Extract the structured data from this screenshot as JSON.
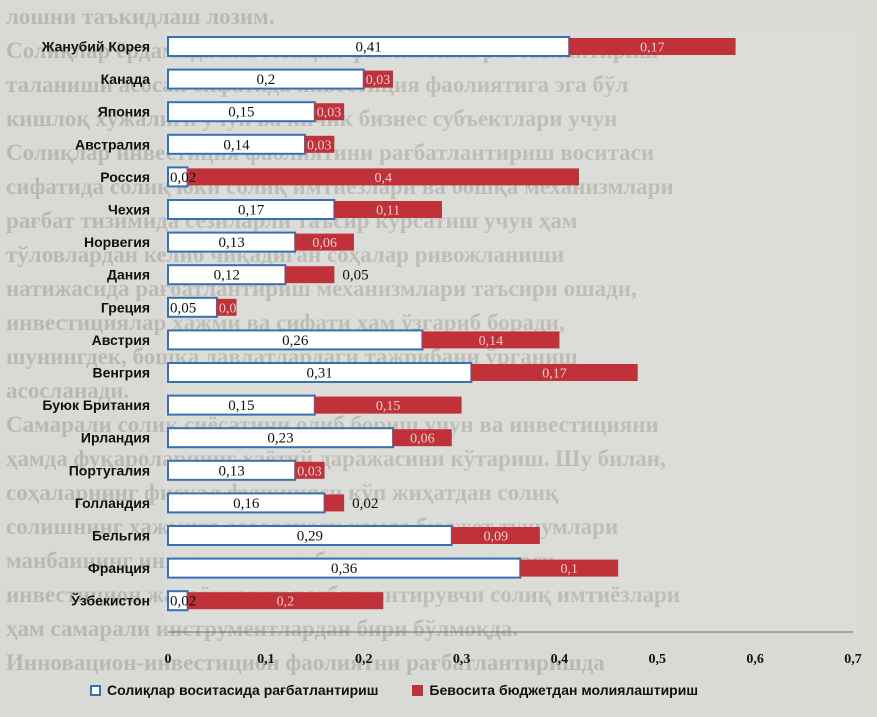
{
  "colors": {
    "series_a_fill": "#ffffff",
    "series_a_stroke": "#3a6fb0",
    "series_b_fill": "#c0313a",
    "background": "#d9d9d6"
  },
  "background_text": [
    "лошни таъкидлаш лозим.",
    "Солиқлар ёрдамида инвестиция фаолиятини рағбатлантириш",
    "таланиши асосан сифатида инвестиция фаолиятига эга бўл",
    "кишлоқ хўжалиги учун ва кичик бизнес субъектлари учун",
    "Солиқлар инвестиция фаолиятини рағбатлантириш воситаси",
    "сифатида солиқ юки солиқ имтиёзлари ва бошқа механизмлари",
    "рағбат тизимида сезиларли таъсир кўрсатиш учун ҳам",
    "тўловлардан келиб чиқадиган соҳалар ривожланиши",
    "натижасида рағбатлантириш механизмлари таъсири ошади,",
    "инвестициялар ҳажми ва сифати ҳам ўзгариб боради,",
    "шунингдек, бошқа давлатлардаги тажрибани ўрганиш",
    "асосланади.",
    "Самарали солиқ сиёсатини олиб бориш учун ва инвестицияни",
    "ҳамда фуқароларнинг ҳаётий даражасини кўтариш. Шу билан,",
    "соҳаларнинг фискал функцияси кўп жиҳатдан солиқ",
    "солишнинг ҳажмига асосланади ҳамда бюджет тушумлари",
    "манбаининг инвестицион рағбатлантириш воситаси",
    "инвестицион жараёнларни рағбатлантирувчи солиқ имтиёзлари",
    "ҳам самарали инструментлардан бири бўлмоқда.",
    "Инновацион-инвестицион фаолиятни рағбатлантиришда"
  ],
  "legend": {
    "series_a": "Солиқлар воситасида рағбатлантириш",
    "series_b": "Бевосита бюджетдан молиялаштириш"
  },
  "chart_data": {
    "type": "bar",
    "orientation": "horizontal",
    "stacked": true,
    "categories": [
      "Жанубий Корея",
      "Канада",
      "Япония",
      "Австралия",
      "Россия",
      "Чехия",
      "Норвегия",
      "Дания",
      "Греция",
      "Австрия",
      "Венгрия",
      "Буюк Британия",
      "Ирландия",
      "Португалия",
      "Голландия",
      "Бельгия",
      "Франция",
      "Ўзбекистон"
    ],
    "series": [
      {
        "name": "Солиқлар воситасида рағбатлантириш",
        "values": [
          0.41,
          0.2,
          0.15,
          0.14,
          0.02,
          0.17,
          0.13,
          0.12,
          0.05,
          0.26,
          0.31,
          0.15,
          0.23,
          0.13,
          0.16,
          0.29,
          0.36,
          0.02
        ]
      },
      {
        "name": "Бевосита бюджетдан молиялаштириш",
        "values": [
          0.17,
          0.03,
          0.03,
          0.03,
          0.4,
          0.11,
          0.06,
          0.05,
          0.02,
          0.14,
          0.17,
          0.15,
          0.06,
          0.03,
          0.02,
          0.09,
          0.1,
          0.2
        ]
      }
    ],
    "value_labels": [
      [
        "0,41",
        "0,2",
        "0,15",
        "0,14",
        "0,02",
        "0,17",
        "0,13",
        "0,12",
        "0,05",
        "0,26",
        "0,31",
        "0,15",
        "0,23",
        "0,13",
        "0,16",
        "0,29",
        "0,36",
        "0,02"
      ],
      [
        "0,17",
        "0,03",
        "0,03",
        "0,03",
        "0,4",
        "0,11",
        "0,06",
        "0,05",
        "0,02",
        "0,14",
        "0,17",
        "0,15",
        "0,06",
        "0,03",
        "0,02",
        "0,09",
        "0,1",
        "0,2"
      ]
    ],
    "x_ticks": [
      "0",
      "0,1",
      "0,2",
      "0,3",
      "0,4",
      "0,5",
      "0,6",
      "0,7"
    ],
    "xlim": [
      0,
      0.7
    ],
    "grid": false,
    "legend_position": "bottom"
  }
}
